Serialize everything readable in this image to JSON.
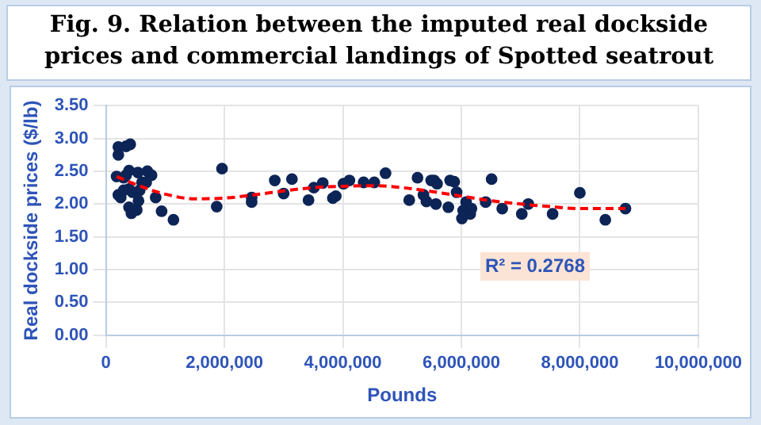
{
  "chart_data": {
    "type": "scatter",
    "title": "Fig. 9. Relation between the imputed real dockside prices and commercial landings of Spotted seatrout",
    "xlabel": "Pounds",
    "ylabel": "Real dockside prices ($/lb)",
    "series": [
      {
        "color": "#0d2456",
        "x": [
          210000,
          210000,
          340000,
          410000,
          180000,
          390000,
          540000,
          700000,
          770000,
          340000,
          300000,
          210000,
          250000,
          300000,
          390000,
          450000,
          570000,
          610000,
          680000,
          550000,
          390000,
          430000,
          520000,
          840000,
          940000,
          1140000,
          1870000,
          1960000,
          2460000,
          2460000,
          2850000,
          3000000,
          3140000,
          3420000,
          3510000,
          3660000,
          3830000,
          3880000,
          4010000,
          4110000,
          4350000,
          4530000,
          4720000,
          5120000,
          5260000,
          5360000,
          5410000,
          5540000,
          5570000,
          5590000,
          5490000,
          5810000,
          5880000,
          5920000,
          5780000,
          6080000,
          6170000,
          6150000,
          6010000,
          6030000,
          6410000,
          6510000,
          6690000,
          7020000,
          7130000,
          7540000,
          8000000,
          8430000,
          8770000
        ],
        "values": [
          2.75,
          2.87,
          2.88,
          2.91,
          2.42,
          2.51,
          2.48,
          2.5,
          2.44,
          2.44,
          2.4,
          2.14,
          2.1,
          2.21,
          2.23,
          2.18,
          2.21,
          2.33,
          2.33,
          2.05,
          1.95,
          1.86,
          1.91,
          2.1,
          1.89,
          1.76,
          1.96,
          2.54,
          2.1,
          2.03,
          2.36,
          2.16,
          2.38,
          2.06,
          2.25,
          2.32,
          2.09,
          2.12,
          2.31,
          2.36,
          2.33,
          2.33,
          2.47,
          2.06,
          2.4,
          2.14,
          2.04,
          2.36,
          2.0,
          2.31,
          2.36,
          2.36,
          2.34,
          2.18,
          1.95,
          2.03,
          1.93,
          1.85,
          1.78,
          1.9,
          2.03,
          2.38,
          1.93,
          1.85,
          2.0,
          1.85,
          2.17,
          1.76,
          1.93
        ]
      },
      {
        "type": "line",
        "color": "#ff0000",
        "line_style": "dashed",
        "marker": "none",
        "x": [
          180000,
          500000,
          1000000,
          1500000,
          2000000,
          2500000,
          3000000,
          3500000,
          4000000,
          4500000,
          5000000,
          5500000,
          6000000,
          6500000,
          7000000,
          7500000,
          8000000,
          8770000
        ],
        "values": [
          2.42,
          2.3,
          2.15,
          2.08,
          2.09,
          2.14,
          2.2,
          2.25,
          2.27,
          2.28,
          2.25,
          2.19,
          2.12,
          2.05,
          2.0,
          1.96,
          1.93,
          1.93
        ]
      }
    ],
    "xlim": [
      0,
      10000000
    ],
    "xticks": [
      {
        "value": 0,
        "label": "0"
      },
      {
        "value": 2000000,
        "label": "2,000,000"
      },
      {
        "value": 4000000,
        "label": "4,000,000"
      },
      {
        "value": 6000000,
        "label": "6,000,000"
      },
      {
        "value": 8000000,
        "label": "8,000,000"
      },
      {
        "value": 10000000,
        "label": "10,000,000"
      }
    ],
    "ylim": [
      0,
      3.5
    ],
    "yticks": [
      {
        "value": 0,
        "label": "0.00"
      },
      {
        "value": 0.5,
        "label": "0.50"
      },
      {
        "value": 1,
        "label": "1.00"
      },
      {
        "value": 1.5,
        "label": "1.50"
      },
      {
        "value": 2,
        "label": "2.00"
      },
      {
        "value": 2.5,
        "label": "2.50"
      },
      {
        "value": 3,
        "label": "3.00"
      },
      {
        "value": 3.5,
        "label": "3.50"
      }
    ],
    "grid": true,
    "marker": "circle",
    "legend": false,
    "annotations": [
      "R² = 0.2768"
    ]
  }
}
